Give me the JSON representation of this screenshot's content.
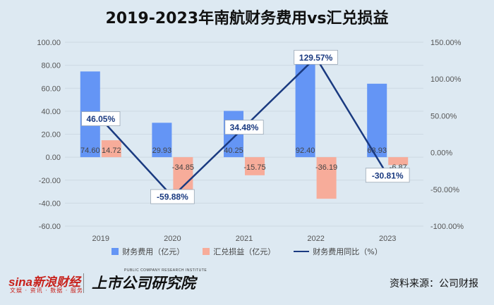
{
  "title": "2019-2023年南航财务费用vs汇兑损益",
  "chart_data": {
    "type": "bar",
    "categories": [
      "2019",
      "2020",
      "2021",
      "2022",
      "2023"
    ],
    "series": [
      {
        "name": "财务费用（亿元）",
        "kind": "bar",
        "axis": "left",
        "color": "#6495f5",
        "values": [
          74.6,
          29.93,
          40.25,
          92.4,
          63.93
        ],
        "labels": [
          "74.60",
          "29.93",
          "40.25",
          "92.40",
          "63.93"
        ]
      },
      {
        "name": "汇兑损益（亿元）",
        "kind": "bar",
        "axis": "left",
        "color": "#f7ac9a",
        "values": [
          14.72,
          -34.85,
          -15.75,
          -36.19,
          -6.87
        ],
        "labels": [
          "14.72",
          "-34.85",
          "-15.75",
          "-36.19",
          "-6.87"
        ]
      },
      {
        "name": "财务费用同比（%）",
        "kind": "line",
        "axis": "right",
        "color": "#1a3a80",
        "values": [
          46.05,
          -59.88,
          34.48,
          129.57,
          -30.81
        ],
        "labels": [
          "46.05%",
          "-59.88%",
          "34.48%",
          "129.57%",
          "-30.81%"
        ]
      }
    ],
    "left_axis": {
      "min": -60,
      "max": 100,
      "step": 20,
      "tick_labels": [
        "100.00",
        "80.00",
        "60.00",
        "40.00",
        "20.00",
        "0.00",
        "-20.00",
        "-40.00",
        "-60.00"
      ]
    },
    "right_axis": {
      "min": -100,
      "max": 150,
      "step": 50,
      "tick_labels": [
        "150.00%",
        "100.00%",
        "50.00%",
        "0.00%",
        "-50.00%",
        "-100.00%"
      ]
    },
    "legend_position": "bottom",
    "grid": true
  },
  "footer": {
    "brand_sina": "sina新浪财经",
    "brand_sub": "文娱 · 资讯 · 数据 · 服务",
    "brand_institute": "上市公司研究院",
    "brand_institute_en": "PUBLIC COMPANY RESEARCH INSTITUTE",
    "source": "资料来源：公司财报"
  }
}
